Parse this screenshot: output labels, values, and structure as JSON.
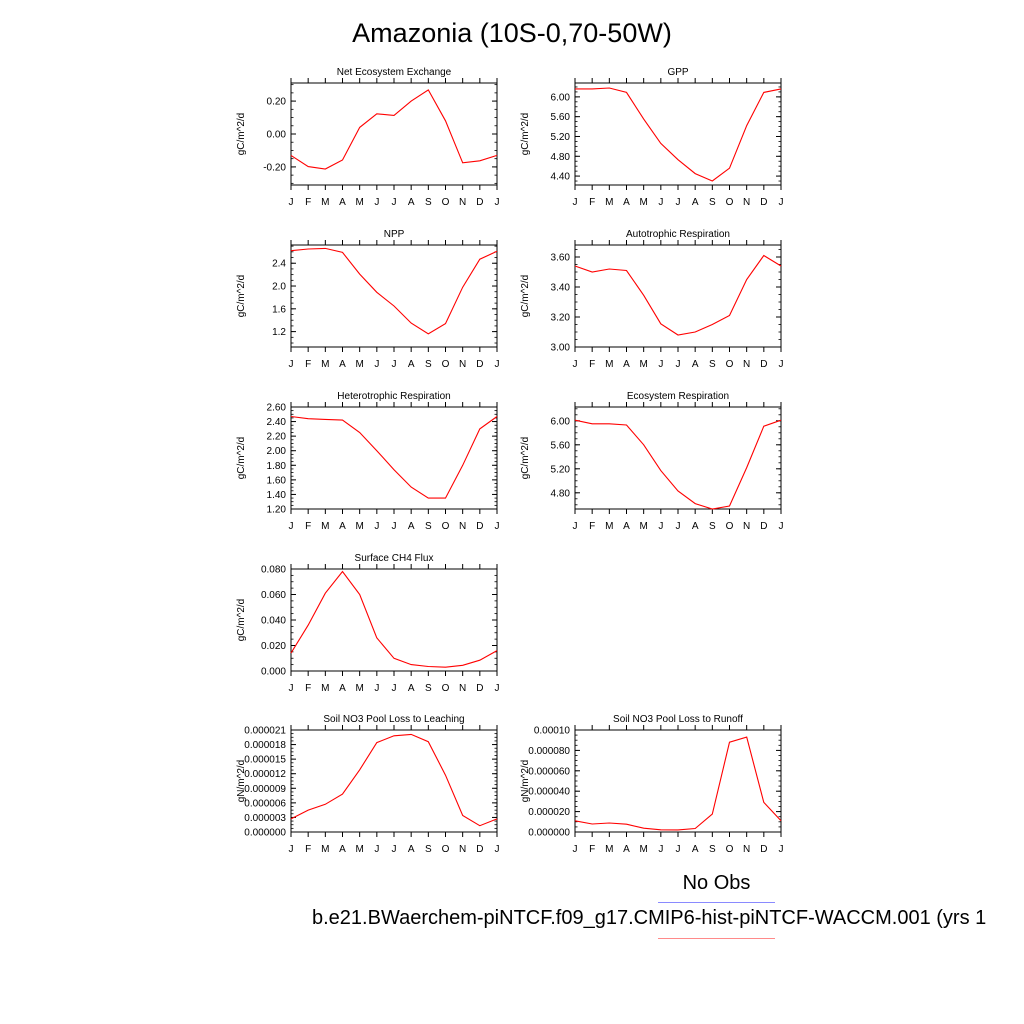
{
  "title": "Amazonia (10S-0,70-50W)",
  "legend": {
    "obs_label": "No Obs",
    "case_label": "b.e21.BWaerchem-piNTCF.f09_g17.CMIP6-hist-piNTCF-WACCM.001 (yrs 1",
    "line_colors": [
      "#8a8aff",
      "#ff8a8a"
    ]
  },
  "series_color": "#ff0000",
  "chart_data": [
    {
      "type": "line",
      "title": "Net Ecosystem Exchange",
      "ylabel": "gC/m^2/d",
      "x": [
        "J",
        "F",
        "M",
        "A",
        "M",
        "J",
        "J",
        "A",
        "S",
        "O",
        "N",
        "D",
        "J"
      ],
      "values": [
        -0.13,
        -0.198,
        -0.213,
        -0.158,
        0.04,
        0.123,
        0.113,
        0.2,
        0.268,
        0.08,
        -0.175,
        -0.163,
        -0.13
      ],
      "ylim": [
        -0.31,
        0.31
      ],
      "yticks": [
        -0.2,
        0.0,
        0.2
      ],
      "ytick_labels": [
        "-0.20",
        "0.00",
        "0.20"
      ]
    },
    {
      "type": "line",
      "title": "GPP",
      "ylabel": "gC/m^2/d",
      "x": [
        "J",
        "F",
        "M",
        "A",
        "M",
        "J",
        "J",
        "A",
        "S",
        "O",
        "N",
        "D",
        "J"
      ],
      "values": [
        6.16,
        6.16,
        6.18,
        6.09,
        5.55,
        5.06,
        4.73,
        4.45,
        4.3,
        4.56,
        5.42,
        6.09,
        6.16
      ],
      "ylim": [
        4.22,
        6.28
      ],
      "yticks": [
        4.4,
        4.8,
        5.2,
        5.6,
        6.0
      ],
      "ytick_labels": [
        "4.40",
        "4.80",
        "5.20",
        "5.60",
        "6.00"
      ]
    },
    {
      "type": "line",
      "title": "NPP",
      "ylabel": "gC/m^2/d",
      "x": [
        "J",
        "F",
        "M",
        "A",
        "M",
        "J",
        "J",
        "A",
        "S",
        "O",
        "N",
        "D",
        "J"
      ],
      "values": [
        2.62,
        2.65,
        2.66,
        2.59,
        2.21,
        1.89,
        1.65,
        1.35,
        1.16,
        1.34,
        1.98,
        2.47,
        2.61
      ],
      "ylim": [
        0.93,
        2.72
      ],
      "yticks": [
        1.2,
        1.6,
        2.0,
        2.4
      ],
      "ytick_labels": [
        "1.2",
        "1.6",
        "2.0",
        "2.4"
      ]
    },
    {
      "type": "line",
      "title": "Autotrophic Respiration",
      "ylabel": "gC/m^2/d",
      "x": [
        "J",
        "F",
        "M",
        "A",
        "M",
        "J",
        "J",
        "A",
        "S",
        "O",
        "N",
        "D",
        "J"
      ],
      "values": [
        3.54,
        3.5,
        3.52,
        3.51,
        3.345,
        3.155,
        3.08,
        3.1,
        3.15,
        3.21,
        3.45,
        3.61,
        3.54
      ],
      "ylim": [
        3.0,
        3.68
      ],
      "yticks": [
        3.0,
        3.2,
        3.4,
        3.6
      ],
      "ytick_labels": [
        "3.00",
        "3.20",
        "3.40",
        "3.60"
      ]
    },
    {
      "type": "line",
      "title": "Heterotrophic Respiration",
      "ylabel": "gC/m^2/d",
      "x": [
        "J",
        "F",
        "M",
        "A",
        "M",
        "J",
        "J",
        "A",
        "S",
        "O",
        "N",
        "D",
        "J"
      ],
      "values": [
        2.47,
        2.44,
        2.43,
        2.42,
        2.25,
        2.0,
        1.74,
        1.5,
        1.35,
        1.35,
        1.8,
        2.3,
        2.47
      ],
      "ylim": [
        1.2,
        2.6
      ],
      "yticks": [
        1.2,
        1.4,
        1.6,
        1.8,
        2.0,
        2.2,
        2.4,
        2.6
      ],
      "ytick_labels": [
        "1.20",
        "1.40",
        "1.60",
        "1.80",
        "2.00",
        "2.20",
        "2.40",
        "2.60"
      ]
    },
    {
      "type": "line",
      "title": "Ecosystem Respiration",
      "ylabel": "gC/m^2/d",
      "x": [
        "J",
        "F",
        "M",
        "A",
        "M",
        "J",
        "J",
        "A",
        "S",
        "O",
        "N",
        "D",
        "J"
      ],
      "values": [
        6.01,
        5.95,
        5.95,
        5.93,
        5.6,
        5.17,
        4.83,
        4.62,
        4.53,
        4.58,
        5.22,
        5.91,
        6.01
      ],
      "ylim": [
        4.53,
        6.23
      ],
      "yticks": [
        4.8,
        5.2,
        5.6,
        6.0
      ],
      "ytick_labels": [
        "4.80",
        "5.20",
        "5.60",
        "6.00"
      ]
    },
    {
      "type": "line",
      "title": "Surface CH4 Flux",
      "ylabel": "gC/m^2/d",
      "x": [
        "J",
        "F",
        "M",
        "A",
        "M",
        "J",
        "J",
        "A",
        "S",
        "O",
        "N",
        "D",
        "J"
      ],
      "values": [
        0.014,
        0.036,
        0.061,
        0.078,
        0.06,
        0.026,
        0.01,
        0.005,
        0.0035,
        0.003,
        0.0045,
        0.0085,
        0.016
      ],
      "ylim": [
        0.0,
        0.08
      ],
      "yticks": [
        0.0,
        0.02,
        0.04,
        0.06,
        0.08
      ],
      "ytick_labels": [
        "0.000",
        "0.020",
        "0.040",
        "0.060",
        "0.080"
      ]
    },
    {
      "type": "line",
      "title": "Soil NO3 Pool Loss to Leaching",
      "ylabel": "gN/m^2/d",
      "x": [
        "J",
        "F",
        "M",
        "A",
        "M",
        "J",
        "J",
        "A",
        "S",
        "O",
        "N",
        "D",
        "J"
      ],
      "values": [
        2.7e-06,
        4.5e-06,
        5.7e-06,
        7.8e-06,
        1.28e-05,
        1.84e-05,
        1.98e-05,
        2.01e-05,
        1.86e-05,
        1.17e-05,
        3.4e-06,
        1.3e-06,
        2.7e-06
      ],
      "ylim": [
        0.0,
        2.1e-05
      ],
      "yticks": [
        0.0,
        3e-06,
        6e-06,
        9e-06,
        1.2e-05,
        1.5e-05,
        1.8e-05,
        2.1e-05
      ],
      "ytick_labels": [
        "0.000000",
        "0.000003",
        "0.000006",
        "0.000009",
        "0.000012",
        "0.000015",
        "0.000018",
        "0.000021"
      ]
    },
    {
      "type": "line",
      "title": "Soil NO3 Pool Loss to Runoff",
      "ylabel": "gN/m^2/d",
      "x": [
        "J",
        "F",
        "M",
        "A",
        "M",
        "J",
        "J",
        "A",
        "S",
        "O",
        "N",
        "D",
        "J"
      ],
      "values": [
        1.1e-05,
        7.8e-06,
        8.8e-06,
        7.6e-06,
        3.7e-06,
        2.2e-06,
        2.1e-06,
        3.4e-06,
        1.75e-05,
        8.8e-05,
        9.3e-05,
        2.9e-05,
        1.1e-05
      ],
      "ylim": [
        0.0,
        0.0001
      ],
      "yticks": [
        0.0,
        2e-05,
        4e-05,
        6e-05,
        8e-05,
        0.0001
      ],
      "ytick_labels": [
        "0.000000",
        "0.000020",
        "0.000040",
        "0.000060",
        "0.000080",
        "0.00010"
      ]
    }
  ]
}
